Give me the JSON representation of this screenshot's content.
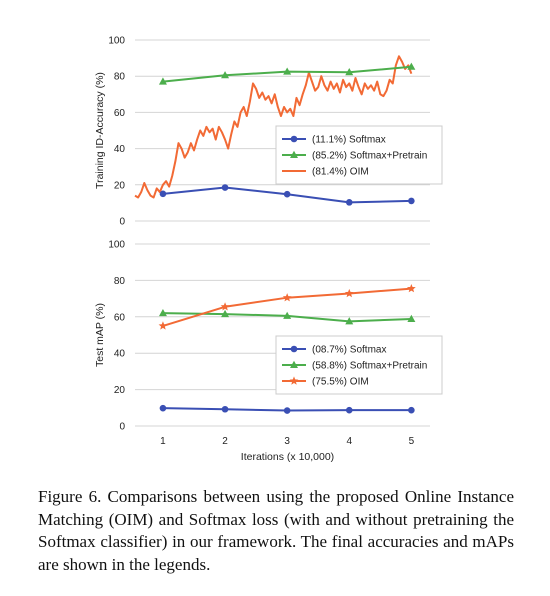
{
  "chart_data": [
    {
      "type": "line",
      "ylabel": "Training ID-Accuracy (%)",
      "xlabel": "",
      "ylim": [
        0,
        100
      ],
      "xlim": [
        0.55,
        5.3
      ],
      "yticks": [
        0,
        20,
        40,
        60,
        80,
        100
      ],
      "xticks": [],
      "grid": "horizontal",
      "legend": "center-right",
      "series": [
        {
          "name": "(11.1%) Softmax",
          "color": "#3a4fb4",
          "marker": "circle",
          "x": [
            1,
            2,
            3,
            4,
            5
          ],
          "values": [
            15,
            18.5,
            14.8,
            10.3,
            11.1
          ]
        },
        {
          "name": "(85.2%) Softmax+Pretrain",
          "color": "#4cae4c",
          "marker": "triangle",
          "x": [
            1,
            2,
            3,
            4,
            5
          ],
          "values": [
            77,
            80.5,
            82.5,
            82.2,
            85.2
          ]
        },
        {
          "name": "(81.4%) OIM",
          "color": "#f26a35",
          "marker": "none",
          "x": [
            0.55,
            0.6,
            0.65,
            0.7,
            0.75,
            0.8,
            0.85,
            0.9,
            0.95,
            1.0,
            1.05,
            1.1,
            1.15,
            1.2,
            1.25,
            1.3,
            1.35,
            1.4,
            1.45,
            1.5,
            1.55,
            1.6,
            1.65,
            1.7,
            1.75,
            1.8,
            1.85,
            1.9,
            1.95,
            2.0,
            2.05,
            2.1,
            2.15,
            2.2,
            2.25,
            2.3,
            2.35,
            2.4,
            2.45,
            2.5,
            2.55,
            2.6,
            2.65,
            2.7,
            2.75,
            2.8,
            2.85,
            2.9,
            2.95,
            3.0,
            3.05,
            3.1,
            3.15,
            3.2,
            3.25,
            3.3,
            3.35,
            3.4,
            3.45,
            3.5,
            3.55,
            3.6,
            3.65,
            3.7,
            3.75,
            3.8,
            3.85,
            3.9,
            3.95,
            4.0,
            4.05,
            4.1,
            4.15,
            4.2,
            4.25,
            4.3,
            4.35,
            4.4,
            4.45,
            4.5,
            4.55,
            4.6,
            4.65,
            4.7,
            4.75,
            4.8,
            4.85,
            4.9,
            4.95,
            5.0
          ],
          "values": [
            14,
            13,
            16,
            21,
            17,
            14,
            13,
            18,
            16,
            20,
            22,
            19,
            25,
            33,
            43,
            40,
            35,
            38,
            43,
            39,
            45,
            50,
            47,
            52,
            49,
            51,
            45,
            52,
            49,
            45,
            40,
            48,
            55,
            52,
            60,
            63,
            58,
            66,
            76,
            73,
            68,
            71,
            67,
            69,
            65,
            70,
            63,
            58,
            63,
            60,
            62,
            58,
            68,
            64,
            70,
            75,
            82,
            77,
            72,
            74,
            80,
            75,
            72,
            77,
            73,
            76,
            71,
            78,
            74,
            76,
            72,
            79,
            74,
            70,
            76,
            73,
            75,
            72,
            77,
            70,
            69,
            72,
            78,
            76,
            86,
            91,
            88,
            84,
            86,
            81.4
          ]
        }
      ]
    },
    {
      "type": "line",
      "ylabel": "Test mAP (%)",
      "xlabel": "Iterations (x 10,000)",
      "ylim": [
        0,
        100
      ],
      "xlim": [
        0.55,
        5.3
      ],
      "yticks": [
        0,
        20,
        40,
        60,
        80,
        100
      ],
      "xticks": [
        1,
        2,
        3,
        4,
        5
      ],
      "grid": "horizontal",
      "legend": "bottom-right",
      "series": [
        {
          "name": "(08.7%) Softmax",
          "color": "#3a4fb4",
          "marker": "circle",
          "x": [
            1,
            2,
            3,
            4,
            5
          ],
          "values": [
            9.8,
            9.2,
            8.5,
            8.7,
            8.7
          ]
        },
        {
          "name": "(58.8%) Softmax+Pretrain",
          "color": "#4cae4c",
          "marker": "triangle",
          "x": [
            1,
            2,
            3,
            4,
            5
          ],
          "values": [
            62,
            61.5,
            60.5,
            57.5,
            58.8
          ]
        },
        {
          "name": "(75.5%) OIM",
          "color": "#f26a35",
          "marker": "star",
          "x": [
            1,
            2,
            3,
            4,
            5
          ],
          "values": [
            55,
            65.5,
            70.5,
            72.8,
            75.5
          ]
        }
      ]
    }
  ],
  "caption": "Figure 6. Comparisons between using the proposed Online Instance Matching (OIM) and Softmax loss (with and without pretraining the Softmax classifier) in our framework. The final accuracies and mAPs are shown in the legends."
}
